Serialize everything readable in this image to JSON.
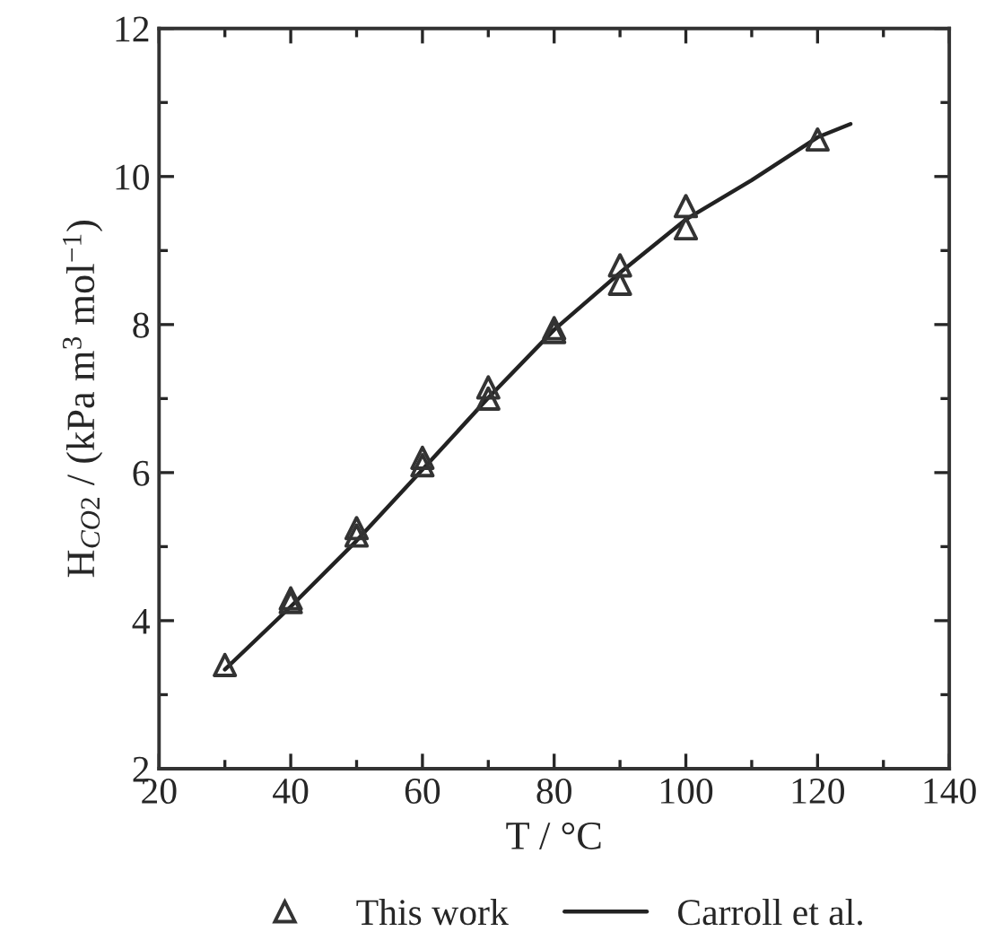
{
  "chart_data": {
    "type": "scatter",
    "xlabel": "T / °C",
    "ylabel": "H$_{CO2}$ / (kPa m$^{3}$ mol$^{−1}$)",
    "xlim": [
      20,
      140
    ],
    "xticks": [
      20,
      40,
      60,
      80,
      100,
      120,
      140
    ],
    "ylim": [
      2,
      12
    ],
    "yticks": [
      2,
      4,
      6,
      8,
      10,
      12
    ],
    "legend": "bottom",
    "grid": false,
    "series": [
      {
        "name": "This work",
        "marker": "triangle",
        "color": "#333333",
        "x": [
          30,
          40,
          40,
          50,
          50,
          60,
          60,
          70,
          70,
          80,
          80,
          90,
          90,
          100,
          100,
          120
        ],
        "values": [
          3.4,
          4.3,
          4.25,
          5.25,
          5.15,
          6.2,
          6.1,
          7.15,
          7.0,
          7.95,
          7.9,
          8.8,
          8.55,
          9.6,
          9.3,
          10.5
        ]
      },
      {
        "name": "Carroll et al.",
        "type": "line",
        "marker": "none",
        "line_style": "solid",
        "color": "#222222",
        "x": [
          30,
          40,
          50,
          60,
          70,
          80,
          90,
          100,
          110,
          120,
          125
        ],
        "values": [
          3.34,
          4.19,
          5.08,
          6.04,
          7.01,
          7.93,
          8.7,
          9.42,
          9.95,
          10.53,
          10.71
        ]
      }
    ]
  }
}
